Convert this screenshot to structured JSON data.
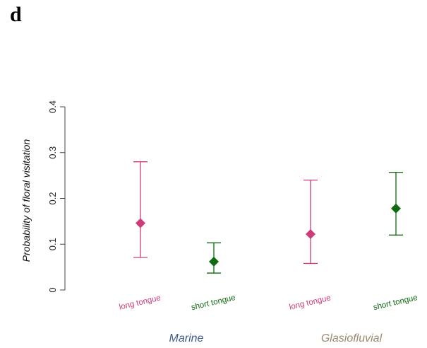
{
  "panel_label": "d",
  "chart_data": {
    "type": "scatter",
    "subtype": "point-with-error-bars",
    "title": "",
    "ylabel": "Probability of floral visitation",
    "xlabel": "",
    "ylim": [
      0,
      0.4
    ],
    "yticks": [
      "0",
      "0.1",
      "0.2",
      "0.3",
      "0.4"
    ],
    "grid": false,
    "groups": [
      {
        "label": "Marine",
        "color": "#3c5a8c",
        "points": [
          {
            "category": "long tongue",
            "value": 0.146,
            "lower": 0.071,
            "upper": 0.28,
            "color": "#cc3d7a"
          },
          {
            "category": "short tongue",
            "value": 0.062,
            "lower": 0.037,
            "upper": 0.103,
            "color": "#0f6b12"
          }
        ]
      },
      {
        "label": "Glasiofluvial",
        "color": "#9c8870",
        "points": [
          {
            "category": "long tongue",
            "value": 0.122,
            "lower": 0.058,
            "upper": 0.24,
            "color": "#cc3d7a"
          },
          {
            "category": "short tongue",
            "value": 0.178,
            "lower": 0.12,
            "upper": 0.257,
            "color": "#0f6b12"
          }
        ]
      }
    ]
  }
}
